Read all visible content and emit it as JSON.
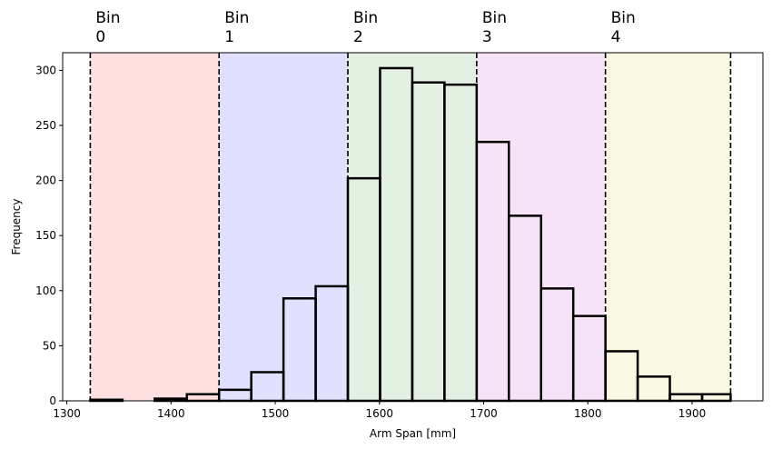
{
  "chart_data": {
    "type": "bar",
    "xlabel": "Arm Span [mm]",
    "ylabel": "Frequency",
    "xlim": [
      1296,
      1968
    ],
    "ylim": [
      0,
      316
    ],
    "x_ticks": [
      1300,
      1400,
      1500,
      1600,
      1700,
      1800,
      1900
    ],
    "y_ticks": [
      0,
      50,
      100,
      150,
      200,
      250,
      300
    ],
    "grid": false,
    "histogram": {
      "bin_edges": [
        1322.5,
        1353.4,
        1384.3,
        1415.2,
        1446.1,
        1477.0,
        1507.9,
        1538.8,
        1569.7,
        1600.6,
        1631.5,
        1662.4,
        1693.3,
        1724.2,
        1755.1,
        1786.0,
        1816.9,
        1847.8,
        1878.7,
        1909.6,
        1937.0
      ],
      "values": [
        1,
        0,
        2,
        6,
        10,
        26,
        93,
        104,
        202,
        302,
        289,
        287,
        235,
        168,
        102,
        77,
        45,
        22,
        6,
        6
      ]
    },
    "bins": [
      {
        "label": "Bin\n0",
        "line1": "Bin",
        "line2": "0",
        "start": 1322.5,
        "end": 1446.1,
        "color": "#ffe0e0"
      },
      {
        "label": "Bin\n1",
        "line1": "Bin",
        "line2": "1",
        "start": 1446.1,
        "end": 1569.7,
        "color": "#e1e1ff"
      },
      {
        "label": "Bin\n2",
        "line1": "Bin",
        "line2": "2",
        "start": 1569.7,
        "end": 1693.3,
        "color": "#e3f1e3"
      },
      {
        "label": "Bin\n3",
        "line1": "Bin",
        "line2": "3",
        "start": 1693.3,
        "end": 1816.9,
        "color": "#f7e3f7"
      },
      {
        "label": "Bin\n4",
        "line1": "Bin",
        "line2": "4",
        "start": 1816.9,
        "end": 1937.0,
        "color": "#f8f8e3"
      }
    ],
    "bin_boundaries": [
      1322.5,
      1446.1,
      1569.7,
      1693.3,
      1816.9,
      1937.0
    ]
  }
}
